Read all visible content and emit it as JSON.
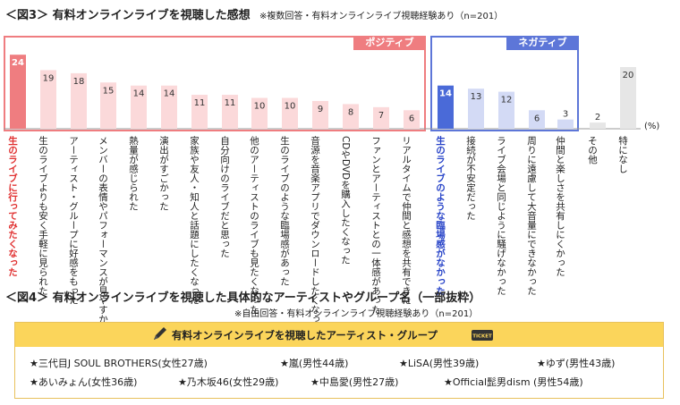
{
  "fig3": {
    "title": "＜図3＞ 有料オンラインライブを視聴した感想",
    "note": "※複数回答・有料オンラインライブ視聴経験あり（n=201）",
    "positive_label": "ポジティブ",
    "negative_label": "ネガティブ",
    "unit": "(%)"
  },
  "chart_data": {
    "type": "bar",
    "ylabel": "(%)",
    "categories": [
      "生のライブに行ってみたくなった",
      "生のライブよりも安く手軽に見られた",
      "アーティスト・グループに好感をもった",
      "メンバーの表情やパフォーマンスが見やすかった",
      "熱量が感じられた",
      "演出がすごかった",
      "家族や友人・知人と話題にしたくなった",
      "自分向けのライブだと思った",
      "他のアーティストのライブも見たくなった",
      "生のライブのような臨場感があった",
      "音源を音楽アプリでダウンロードしたくなった",
      "CDやDVDを購入したくなった",
      "ファンとアーティストとの一体感があった",
      "リアルタイムで仲間と感想を共有できた",
      "生のライブのような臨場感がなかった",
      "接続が不安定だった",
      "ライブ会場と同じように騒げなかった",
      "周りに遠慮して大音量にできなかった",
      "仲間と楽しさを共有しにくかった",
      "その他",
      "特になし"
    ],
    "values": [
      24,
      19,
      18,
      15,
      14,
      14,
      11,
      11,
      10,
      10,
      9,
      8,
      7,
      6,
      14,
      13,
      12,
      6,
      3,
      2,
      20
    ],
    "groups": [
      {
        "name": "ポジティブ",
        "from": 0,
        "to": 13
      },
      {
        "name": "ネガティブ",
        "from": 14,
        "to": 18
      }
    ],
    "colors": {
      "positive_highlight": "#ef7d80",
      "positive": "#fbd9da",
      "negative_highlight": "#4a6ad8",
      "negative": "#d3daf5",
      "other": "#e6e6e6"
    }
  },
  "fig4": {
    "title": "＜図4＞ 有料オンラインライブを視聴した具体的なアーティストやグループ名（一部抜粋）",
    "note": "※自由回答・有料オンラインライブ視聴経験あり（n=201）",
    "panel_title": "有料オンラインライブを視聴したアーティスト・グループ",
    "ticket_text": "TICKET",
    "artists": [
      "★三代目J SOUL BROTHERS(女性27歳)",
      "★嵐(男性44歳)",
      "★LiSA(男性39歳)",
      "★ゆず(男性43歳)",
      "★あいみょん(女性36歳)",
      "★乃木坂46(女性29歳)",
      "★中島愛(男性27歳)",
      "★Official髭男dism (男性54歳)"
    ]
  }
}
